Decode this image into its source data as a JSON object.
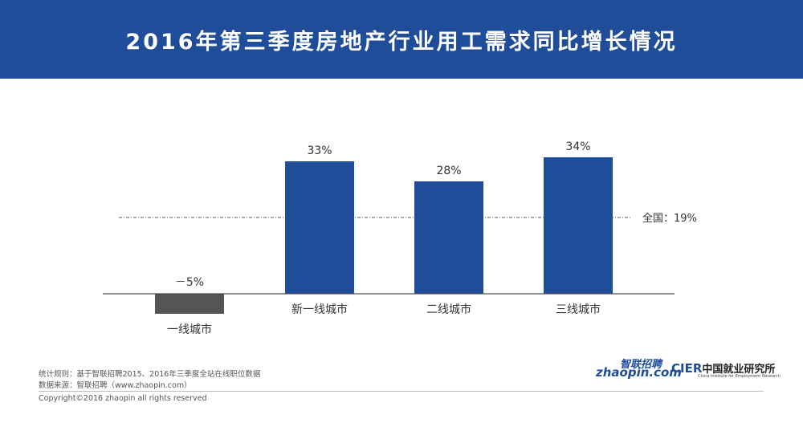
{
  "banner": {
    "title": "2016年第三季度房地产行业用工需求同比增长情况"
  },
  "chart_data": {
    "type": "bar",
    "title": "2016年第三季度房地产行业用工需求同比增长情况",
    "categories": [
      "一线城市",
      "新一线城市",
      "二线城市",
      "三线城市"
    ],
    "values": [
      -5,
      33,
      28,
      34
    ],
    "value_labels": [
      "－5%",
      "33%",
      "28%",
      "34%"
    ],
    "unit": "%",
    "reference_line": {
      "value": 19,
      "label": "全国：19%"
    },
    "ylim": [
      -6,
      40
    ],
    "grid": false,
    "colors": {
      "positive": "#1f4d9a",
      "negative": "#555555",
      "reference": "#555555"
    }
  },
  "footer": {
    "stat_rule": "统计规则：基于智联招聘2015、2016年三季度全站在线职位数据",
    "data_source": "数据来源：智联招聘（www.zhaopin.com）",
    "copyright": "Copyright©2016 zhaopin all rights reserved"
  },
  "logos": {
    "zhaopin_cn": "智联招聘",
    "zhaopin_en": "zhaopin.com",
    "cier_mark": "CIER",
    "cier_cn": "中国就业研究所",
    "cier_en": "China Institute for Employment Research"
  }
}
